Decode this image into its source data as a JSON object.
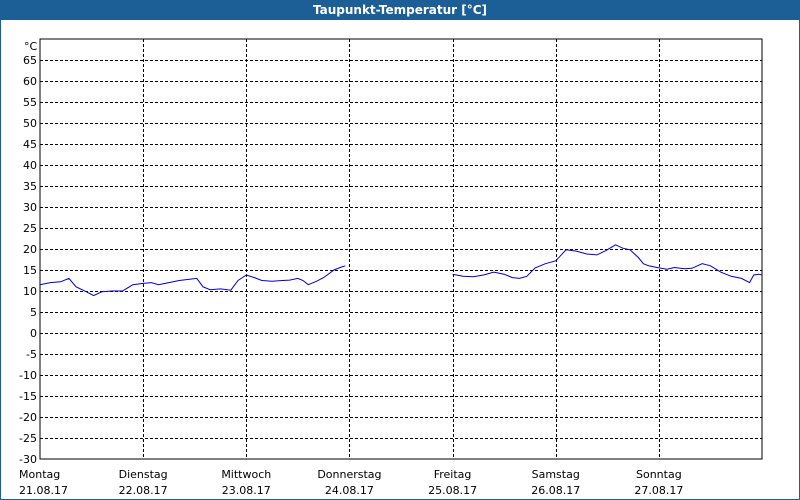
{
  "title": "Taupunkt-Temperatur [°C]",
  "chart_data": {
    "type": "line",
    "title": "Taupunkt-Temperatur [°C]",
    "ylabel": "°C",
    "ylim": [
      -30,
      70
    ],
    "yticks": [
      65,
      60,
      55,
      50,
      45,
      40,
      35,
      30,
      25,
      20,
      15,
      10,
      5,
      0,
      -5,
      -10,
      -15,
      -20,
      -25,
      -30
    ],
    "xlim": [
      0,
      7
    ],
    "x_ticks": [
      {
        "day": "Montag",
        "date": "21.08.17",
        "x": 0
      },
      {
        "day": "Dienstag",
        "date": "22.08.17",
        "x": 1
      },
      {
        "day": "Mittwoch",
        "date": "23.08.17",
        "x": 2
      },
      {
        "day": "Donnerstag",
        "date": "24.08.17",
        "x": 3
      },
      {
        "day": "Freitag",
        "date": "25.08.17",
        "x": 4
      },
      {
        "day": "Samstag",
        "date": "26.08.17",
        "x": 5
      },
      {
        "day": "Sonntag",
        "date": "27.08.17",
        "x": 6
      }
    ],
    "grid": true,
    "line_color": "#0000cc",
    "series": [
      {
        "segments": [
          [
            [
              0.0,
              11.5
            ],
            [
              0.1,
              12.0
            ],
            [
              0.2,
              12.2
            ],
            [
              0.28,
              13.0
            ],
            [
              0.35,
              11.0
            ],
            [
              0.45,
              9.8
            ],
            [
              0.52,
              8.9
            ],
            [
              0.6,
              9.8
            ],
            [
              0.7,
              10.0
            ],
            [
              0.8,
              10.0
            ],
            [
              0.9,
              11.5
            ],
            [
              1.0,
              11.8
            ],
            [
              1.08,
              12.0
            ],
            [
              1.15,
              11.5
            ],
            [
              1.25,
              12.0
            ],
            [
              1.35,
              12.5
            ],
            [
              1.45,
              12.8
            ],
            [
              1.52,
              13.0
            ],
            [
              1.58,
              11.0
            ],
            [
              1.65,
              10.3
            ],
            [
              1.75,
              10.5
            ],
            [
              1.85,
              10.2
            ],
            [
              1.92,
              12.5
            ],
            [
              2.0,
              13.8
            ],
            [
              2.08,
              13.2
            ],
            [
              2.15,
              12.5
            ],
            [
              2.25,
              12.3
            ],
            [
              2.35,
              12.5
            ],
            [
              2.42,
              12.6
            ],
            [
              2.5,
              13.0
            ],
            [
              2.55,
              12.5
            ],
            [
              2.6,
              11.5
            ],
            [
              2.68,
              12.3
            ],
            [
              2.75,
              13.2
            ],
            [
              2.85,
              15.0
            ],
            [
              2.92,
              15.7
            ],
            [
              2.96,
              16.0
            ]
          ],
          [
            [
              4.0,
              14.0
            ],
            [
              4.1,
              13.5
            ],
            [
              4.2,
              13.4
            ],
            [
              4.3,
              13.8
            ],
            [
              4.4,
              14.5
            ],
            [
              4.5,
              14.0
            ],
            [
              4.58,
              13.2
            ],
            [
              4.65,
              13.0
            ],
            [
              4.72,
              13.5
            ],
            [
              4.8,
              15.5
            ],
            [
              4.9,
              16.5
            ],
            [
              5.0,
              17.2
            ],
            [
              5.05,
              18.5
            ],
            [
              5.1,
              19.8
            ],
            [
              5.2,
              19.5
            ],
            [
              5.3,
              18.8
            ],
            [
              5.4,
              18.6
            ],
            [
              5.5,
              19.8
            ],
            [
              5.58,
              21.0
            ],
            [
              5.65,
              20.2
            ],
            [
              5.72,
              19.8
            ],
            [
              5.8,
              18.0
            ],
            [
              5.85,
              16.5
            ],
            [
              5.9,
              16.0
            ],
            [
              6.0,
              15.5
            ],
            [
              6.08,
              15.2
            ],
            [
              6.15,
              15.6
            ],
            [
              6.25,
              15.3
            ],
            [
              6.32,
              15.4
            ],
            [
              6.42,
              16.5
            ],
            [
              6.5,
              16.0
            ],
            [
              6.6,
              14.5
            ],
            [
              6.7,
              13.5
            ],
            [
              6.8,
              13.0
            ],
            [
              6.88,
              12.0
            ],
            [
              6.92,
              13.8
            ],
            [
              6.97,
              14.0
            ],
            [
              7.0,
              13.8
            ]
          ]
        ]
      }
    ]
  }
}
